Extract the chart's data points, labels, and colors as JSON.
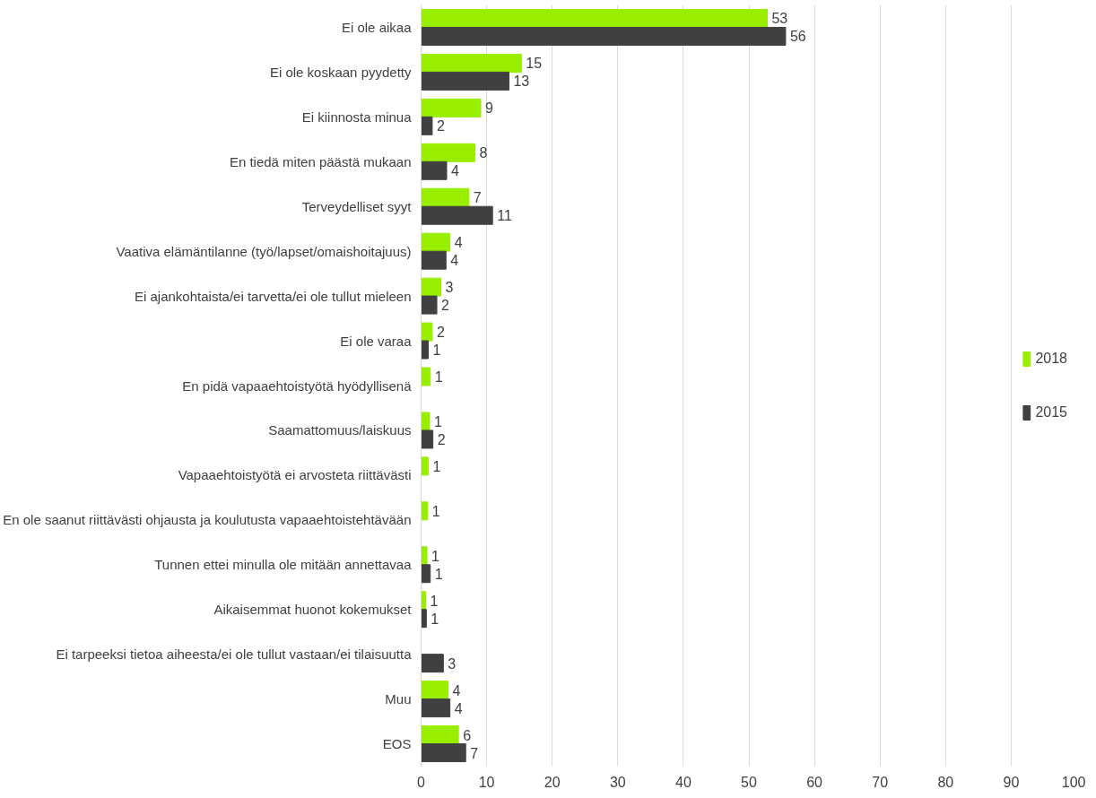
{
  "chart_data": {
    "type": "bar",
    "orientation": "horizontal",
    "categories": [
      "Ei ole aikaa",
      "Ei ole koskaan pyydetty",
      "Ei kiinnosta minua",
      "En tiedä miten päästä mukaan",
      "Terveydelliset syyt",
      "Vaativa elämäntilanne (työ/lapset/omaishoitajuus)",
      "Ei ajankohtaista/ei tarvetta/ei ole tullut mieleen",
      "Ei ole varaa",
      "En pidä vapaaehtoistyötä hyödyllisenä",
      "Saamattomuus/laiskuus",
      "Vapaaehtoistyötä ei arvosteta riittävästi",
      "En ole saanut riittävästi ohjausta ja koulutusta vapaaehtoistehtävään",
      "Tunnen ettei minulla ole mitään annettavaa",
      "Aikaisemmat huonot kokemukset",
      "Ei tarpeeksi tietoa aiheesta/ei ole tullut vastaan/ei tilaisuutta",
      "Muu",
      "EOS"
    ],
    "series": [
      {
        "name": "2018",
        "color": "#99ee00",
        "values": [
          52.8,
          15.3,
          9.1,
          8.2,
          7.3,
          4.4,
          3.0,
          1.7,
          1.4,
          1.3,
          1.1,
          1.0,
          0.9,
          0.7,
          null,
          4.1,
          5.7
        ],
        "value_labels": [
          "53",
          "15",
          "9",
          "8",
          "7",
          "4",
          "3",
          "2",
          "1",
          "1",
          "1",
          "1",
          "1",
          "1",
          null,
          "4",
          "6"
        ]
      },
      {
        "name": "2015",
        "color": "#404040",
        "values": [
          55.6,
          13.4,
          1.7,
          3.9,
          10.9,
          3.8,
          2.4,
          1.1,
          null,
          1.8,
          null,
          null,
          1.4,
          0.8,
          3.4,
          4.4,
          6.8
        ],
        "value_labels": [
          "56",
          "13",
          "2",
          "4",
          "11",
          "4",
          "2",
          "1",
          null,
          "2",
          null,
          null,
          "1",
          "1",
          "3",
          "4",
          "7"
        ]
      }
    ],
    "xlim": [
      0,
      100
    ],
    "xticks": [
      0,
      10,
      20,
      30,
      40,
      50,
      60,
      70,
      80,
      90,
      100
    ],
    "grid": "x",
    "legend": "right"
  }
}
